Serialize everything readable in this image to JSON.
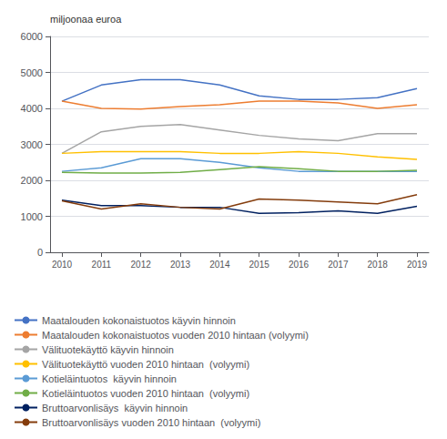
{
  "chart_data": {
    "type": "line",
    "ylabel": "miljoonaa euroa",
    "x": [
      2010,
      2011,
      2012,
      2013,
      2014,
      2015,
      2016,
      2017,
      2018,
      2019
    ],
    "xlim": [
      2009.7,
      2019.3
    ],
    "xticks": [
      2010,
      2011,
      2012,
      2013,
      2014,
      2015,
      2016,
      2017,
      2018,
      2019
    ],
    "series": [
      {
        "name": "Maatalouden kokonaistuotos käyvin hinnoin",
        "color": "#4472C4",
        "values": [
          4200,
          4650,
          4800,
          4800,
          4650,
          4350,
          4250,
          4250,
          4300,
          4550
        ]
      },
      {
        "name": "Maatalouden kokonaistuotos vuoden 2010 hintaan (volyymi)",
        "color": "#ED7D31",
        "values": [
          4200,
          4000,
          3980,
          4050,
          4100,
          4200,
          4200,
          4150,
          4000,
          4100
        ]
      },
      {
        "name": "Välituotekäyttö käyvin hinnoin",
        "color": "#A5A5A5",
        "values": [
          2750,
          3350,
          3500,
          3550,
          3400,
          3250,
          3150,
          3100,
          3300,
          3300
        ]
      },
      {
        "name": "Välituotekäyttö vuoden 2010 hintaan  (volyymi)",
        "color": "#FFC000",
        "values": [
          2750,
          2800,
          2800,
          2800,
          2750,
          2750,
          2800,
          2750,
          2650,
          2580
        ]
      },
      {
        "name": "Kotieläintuotos  käyvin hinnoin",
        "color": "#5B9BD5",
        "values": [
          2250,
          2350,
          2600,
          2600,
          2500,
          2350,
          2250,
          2250,
          2250,
          2250
        ]
      },
      {
        "name": "Kotieläintuotos vuoden 2010 hintaan  (volyymi)",
        "color": "#70AD47",
        "values": [
          2220,
          2200,
          2200,
          2220,
          2300,
          2380,
          2320,
          2250,
          2250,
          2280
        ]
      },
      {
        "name": "Bruttoarvonlisäys  käyvin hinnoin",
        "color": "#002060",
        "values": [
          1450,
          1300,
          1300,
          1250,
          1250,
          1080,
          1100,
          1150,
          1080,
          1280
        ]
      },
      {
        "name": "Bruttoarvonlisäys vuoden 2010 hintaan  (volyymi)",
        "color": "#843C0C",
        "values": [
          1430,
          1200,
          1350,
          1250,
          1200,
          1480,
          1450,
          1400,
          1350,
          1600
        ]
      }
    ],
    "ylim": [
      0,
      6000
    ],
    "yticks": [
      0,
      1000,
      2000,
      3000,
      4000,
      5000,
      6000
    ],
    "grid": true,
    "legend": "bottom"
  }
}
